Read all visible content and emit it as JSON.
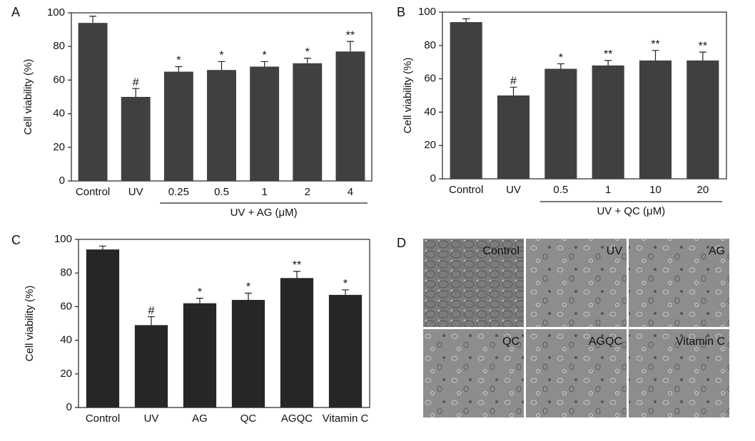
{
  "chart_data": [
    {
      "type": "bar",
      "panel": "A",
      "y_label": "Cell viability (%)",
      "categories": [
        "Control",
        "UV",
        "0.25",
        "0.5",
        "1",
        "2",
        "4"
      ],
      "values": [
        94,
        50,
        65,
        66,
        68,
        70,
        77
      ],
      "errors": [
        4,
        5,
        3,
        5,
        3,
        3,
        6
      ],
      "annotations": [
        null,
        "#",
        "*",
        "*",
        "*",
        "*",
        "**"
      ],
      "group_label": "UV + AG (μM)",
      "color": "#404040",
      "ylim": [
        0,
        100
      ],
      "yticks": [
        0,
        20,
        40,
        60,
        80,
        100
      ]
    },
    {
      "type": "bar",
      "panel": "B",
      "y_label": "Cell  viability (%)",
      "categories": [
        "Control",
        "UV",
        "0.5",
        "1",
        "10",
        "20"
      ],
      "values": [
        94,
        50,
        66,
        68,
        71,
        71
      ],
      "errors": [
        2,
        5,
        3,
        3,
        6,
        5
      ],
      "annotations": [
        null,
        "#",
        "*",
        "**",
        "**",
        "**"
      ],
      "group_label": "UV + QC (μM)",
      "color": "#404040",
      "ylim": [
        0,
        100
      ],
      "yticks": [
        0,
        20,
        40,
        60,
        80,
        100
      ]
    },
    {
      "type": "bar",
      "panel": "C",
      "y_label": "Cell viability (%)",
      "categories": [
        "Control",
        "UV",
        "AG",
        "QC",
        "AGQC",
        "Vitamin C"
      ],
      "values": [
        94,
        49,
        62,
        64,
        77,
        67
      ],
      "errors": [
        2,
        5,
        3,
        4,
        4,
        3
      ],
      "annotations": [
        null,
        "#",
        "*",
        "*",
        "**",
        "*"
      ],
      "color": "#262626",
      "ylim": [
        0,
        100
      ],
      "yticks": [
        0,
        20,
        40,
        60,
        80,
        100
      ]
    }
  ],
  "panel_d": {
    "panel": "D",
    "images": [
      "Control",
      "UV",
      "AG",
      "QC",
      "AGQC",
      "Vitamin C"
    ]
  }
}
